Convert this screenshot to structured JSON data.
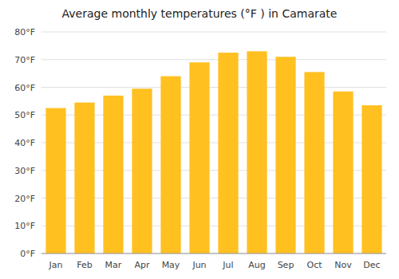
{
  "chart_data": {
    "type": "bar",
    "title": "Average monthly temperatures (°F ) in Camarate",
    "categories": [
      "Jan",
      "Feb",
      "Mar",
      "Apr",
      "May",
      "Jun",
      "Jul",
      "Aug",
      "Sep",
      "Oct",
      "Nov",
      "Dec"
    ],
    "values": [
      52.5,
      54.5,
      57.0,
      59.5,
      64.0,
      69.0,
      72.5,
      73.0,
      71.0,
      65.5,
      58.5,
      53.5
    ],
    "color": "#FFC020",
    "ylim": [
      0,
      80
    ],
    "yticks": [
      {
        "value": 0,
        "label": "0°F"
      },
      {
        "value": 10,
        "label": "10°F"
      },
      {
        "value": 20,
        "label": "20°F"
      },
      {
        "value": 30,
        "label": "30°F"
      },
      {
        "value": 40,
        "label": "40°F"
      },
      {
        "value": 50,
        "label": "50°F"
      },
      {
        "value": 60,
        "label": "60°F"
      },
      {
        "value": 70,
        "label": "70°F"
      },
      {
        "value": 80,
        "label": "80°F"
      }
    ],
    "grid": true
  }
}
